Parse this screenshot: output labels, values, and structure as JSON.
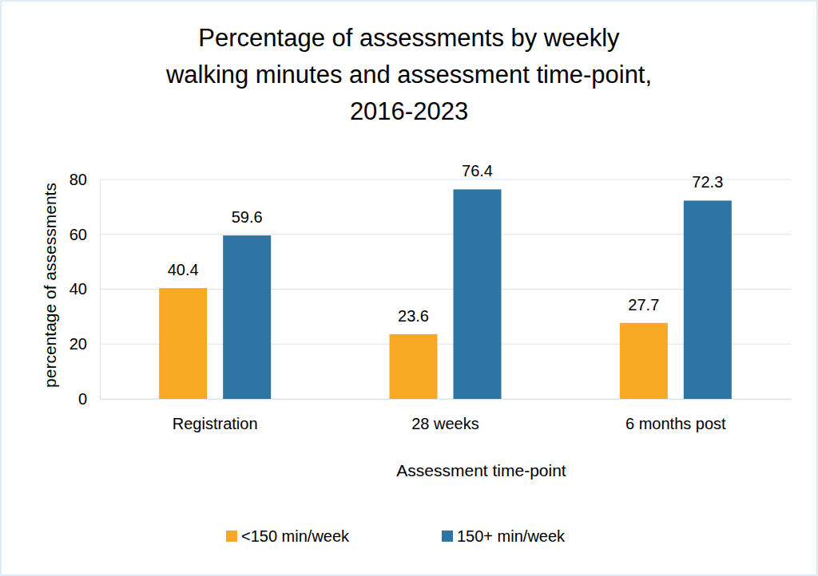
{
  "chart_data": {
    "type": "bar",
    "title": "Percentage of assessments by weekly walking minutes and assessment time-point, 2016-2023",
    "x_label": "Assessment time-point",
    "y_label": "percentage of assessments",
    "categories": [
      "Registration",
      "28 weeks",
      "6 months post"
    ],
    "series": [
      {
        "name": "<150 min/week",
        "color": "#f9a825",
        "values": [
          40.4,
          23.6,
          27.7
        ]
      },
      {
        "name": "150+ min/week",
        "color": "#2e75a3",
        "values": [
          59.6,
          76.4,
          72.3
        ]
      }
    ],
    "ylim": [
      0,
      80
    ],
    "yticks": [
      0,
      20,
      40,
      60,
      80
    ],
    "grid": true,
    "data_labels": true,
    "legend": "bottom"
  }
}
